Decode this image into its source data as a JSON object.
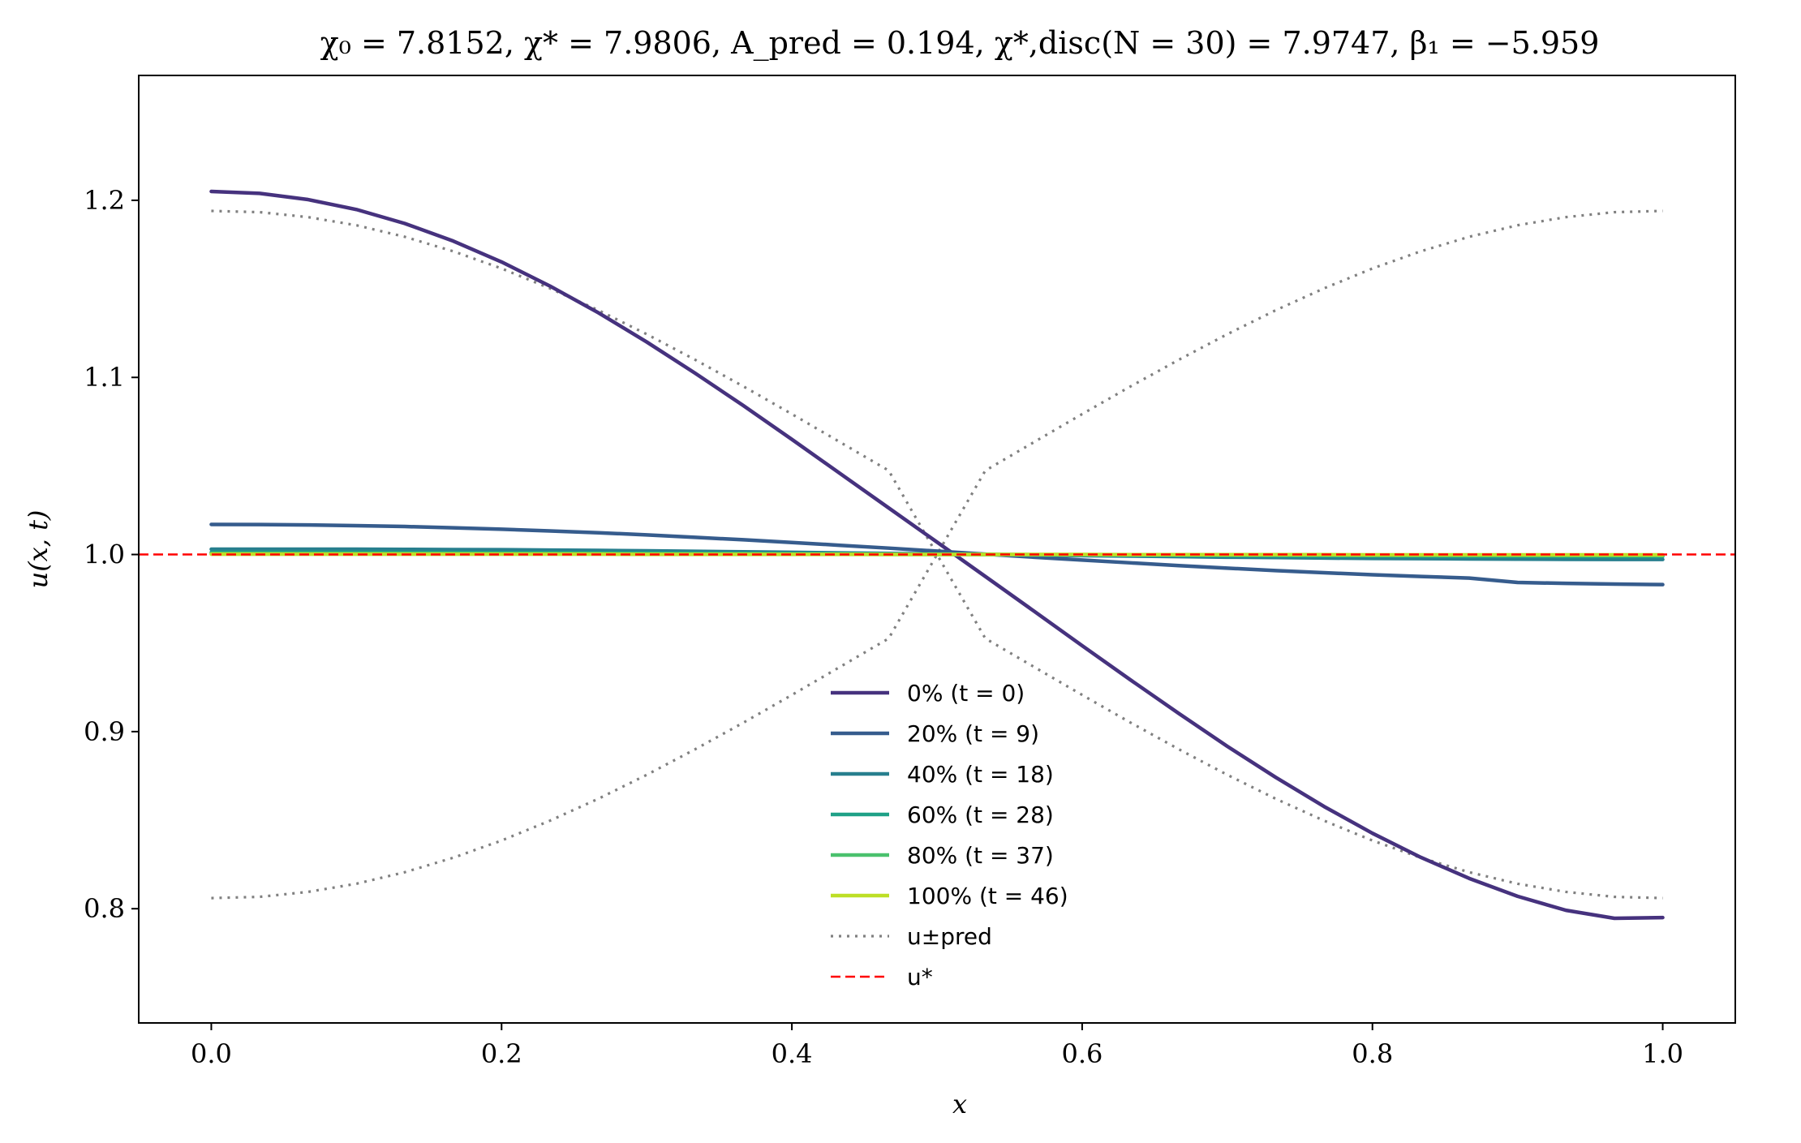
{
  "chart_data": {
    "type": "line",
    "title": "χ₀ = 7.8152,  χ* = 7.9806,  A_pred = 0.194,  χ*,disc(N = 30) = 7.9747,  β₁ = −5.959",
    "xlabel": "x",
    "ylabel": "u(x, t)",
    "xlim": [
      -0.05,
      1.05
    ],
    "ylim": [
      0.7355,
      1.2705
    ],
    "xticks": [
      0.0,
      0.2,
      0.4,
      0.6,
      0.8,
      1.0
    ],
    "xtick_labels": [
      "0.0",
      "0.2",
      "0.4",
      "0.6",
      "0.8",
      "1.0"
    ],
    "yticks": [
      0.8,
      0.9,
      1.0,
      1.1,
      1.2
    ],
    "ytick_labels": [
      "0.8",
      "0.9",
      "1.0",
      "1.1",
      "1.2"
    ],
    "grid": false,
    "legend_position": "lower-center",
    "x": [
      0.0,
      0.0333,
      0.0667,
      0.1,
      0.1333,
      0.1667,
      0.2,
      0.2333,
      0.2667,
      0.3,
      0.3333,
      0.3667,
      0.4,
      0.4333,
      0.4667,
      0.5,
      0.5333,
      0.5667,
      0.6,
      0.6333,
      0.6667,
      0.7,
      0.7333,
      0.7667,
      0.8,
      0.8333,
      0.8667,
      0.9,
      0.9333,
      0.9667,
      1.0
    ],
    "series": [
      {
        "name": "0% (t = 0)",
        "color": "#46327e",
        "style": "solid",
        "values": [
          1.205,
          1.2039,
          1.2004,
          1.1948,
          1.1869,
          1.177,
          1.1652,
          1.1516,
          1.1365,
          1.12,
          1.1024,
          1.084,
          1.065,
          1.0457,
          1.0263,
          1.007,
          0.9876,
          0.9681,
          0.9485,
          0.9292,
          0.9102,
          0.8917,
          0.8742,
          0.8577,
          0.8426,
          0.829,
          0.8171,
          0.807,
          0.7991,
          0.7946,
          0.795
        ]
      },
      {
        "name": "20% (t = 9)",
        "color": "#365c8d",
        "style": "solid",
        "values": [
          1.017,
          1.0169,
          1.0167,
          1.0163,
          1.0158,
          1.0151,
          1.0143,
          1.0133,
          1.0123,
          1.0111,
          1.0097,
          1.0083,
          1.0068,
          1.0052,
          1.0036,
          1.0019,
          1.0002,
          0.9985,
          0.9969,
          0.9953,
          0.9937,
          0.9923,
          0.9909,
          0.9897,
          0.9886,
          0.9876,
          0.9867,
          0.9842,
          0.9837,
          0.9833,
          0.983
        ]
      },
      {
        "name": "40% (t = 18)",
        "color": "#277f8e",
        "style": "solid",
        "values": [
          1.003,
          1.003,
          1.003,
          1.003,
          1.0029,
          1.0028,
          1.0027,
          1.0025,
          1.0023,
          1.0021,
          1.0018,
          1.0015,
          1.0012,
          1.0009,
          1.0006,
          1.0003,
          1.0,
          0.9997,
          0.9994,
          0.9991,
          0.9988,
          0.9985,
          0.9983,
          0.998,
          0.9978,
          0.9977,
          0.9975,
          0.9974,
          0.9973,
          0.9972,
          0.9972
        ]
      },
      {
        "name": "60% (t = 28)",
        "color": "#1fa187",
        "style": "solid",
        "values": [
          1.0012,
          1.0012,
          1.0012,
          1.0012,
          1.0011,
          1.0011,
          1.001,
          1.001,
          1.0009,
          1.0008,
          1.0007,
          1.0006,
          1.0005,
          1.0004,
          1.0002,
          1.0001,
          1.0,
          0.9999,
          0.9998,
          0.9996,
          0.9995,
          0.9994,
          0.9993,
          0.9992,
          0.9992,
          0.9991,
          0.999,
          0.999,
          0.9989,
          0.9989,
          0.9989
        ]
      },
      {
        "name": "80% (t = 37)",
        "color": "#4ac16d",
        "style": "solid",
        "values": [
          1.0005,
          1.0005,
          1.0005,
          1.0005,
          1.0005,
          1.0005,
          1.0004,
          1.0004,
          1.0004,
          1.0003,
          1.0003,
          1.0003,
          1.0002,
          1.0002,
          1.0001,
          1.0,
          1.0,
          0.9999,
          0.9999,
          0.9998,
          0.9998,
          0.9997,
          0.9997,
          0.9997,
          0.9996,
          0.9996,
          0.9996,
          0.9996,
          0.9995,
          0.9995,
          0.9995
        ]
      },
      {
        "name": "100% (t = 46)",
        "color": "#bddf26",
        "style": "solid",
        "values": [
          1.0002,
          1.0002,
          1.0002,
          1.0002,
          1.0002,
          1.0002,
          1.0002,
          1.0002,
          1.0002,
          1.0001,
          1.0001,
          1.0001,
          1.0001,
          1.0001,
          1.0,
          1.0,
          1.0,
          1.0,
          1.0,
          0.9999,
          0.9999,
          0.9999,
          0.9999,
          0.9999,
          0.9998,
          0.9998,
          0.9998,
          0.9998,
          0.9998,
          0.9998,
          0.9998
        ]
      },
      {
        "name": "u±pred",
        "color": "#808080",
        "style": "dotted",
        "values": [
          1.194,
          1.1933,
          1.1905,
          1.1859,
          1.1794,
          1.1712,
          1.1615,
          1.1503,
          1.1379,
          1.1244,
          1.11,
          1.0949,
          1.0793,
          1.0634,
          1.0474,
          1.0,
          0.9526,
          0.9366,
          0.9207,
          0.9051,
          0.89,
          0.8756,
          0.8621,
          0.8497,
          0.8385,
          0.8288,
          0.8206,
          0.8141,
          0.8095,
          0.8067,
          0.806
        ],
        "values_mirror": [
          0.806,
          0.8067,
          0.8095,
          0.8141,
          0.8206,
          0.8288,
          0.8385,
          0.8497,
          0.8621,
          0.8756,
          0.89,
          0.9051,
          0.9207,
          0.9366,
          0.9526,
          1.0,
          1.0474,
          1.0634,
          1.0793,
          1.0949,
          1.11,
          1.1244,
          1.1379,
          1.1503,
          1.1615,
          1.1712,
          1.1794,
          1.1859,
          1.1905,
          1.1933,
          1.194
        ]
      },
      {
        "name": "u*",
        "color": "#ff0000",
        "style": "dashed",
        "value": 1.0
      }
    ],
    "legend": [
      {
        "label": "0% (t = 0)",
        "color": "#46327e",
        "style": "solid"
      },
      {
        "label": "20% (t = 9)",
        "color": "#365c8d",
        "style": "solid"
      },
      {
        "label": "40% (t = 18)",
        "color": "#277f8e",
        "style": "solid"
      },
      {
        "label": "60% (t = 28)",
        "color": "#1fa187",
        "style": "solid"
      },
      {
        "label": "80% (t = 37)",
        "color": "#4ac16d",
        "style": "solid"
      },
      {
        "label": "100% (t = 46)",
        "color": "#bddf26",
        "style": "solid"
      },
      {
        "label": "u±pred",
        "color": "#808080",
        "style": "dotted"
      },
      {
        "label": "u*",
        "color": "#ff0000",
        "style": "dashed"
      }
    ]
  }
}
